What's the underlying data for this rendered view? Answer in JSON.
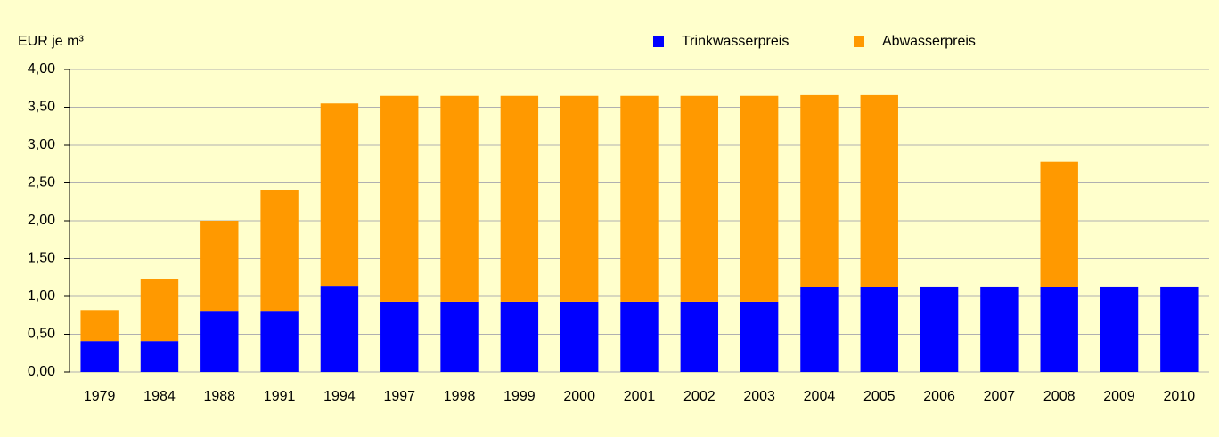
{
  "chart_data": {
    "type": "stacked_bar",
    "y_label": "EUR je m³",
    "categories": [
      "1979",
      "1984",
      "1988",
      "1991",
      "1994",
      "1997",
      "1998",
      "1999",
      "2000",
      "2001",
      "2002",
      "2003",
      "2004",
      "2005",
      "2006",
      "2007",
      "2008",
      "2009",
      "2010"
    ],
    "series": [
      {
        "name": "Trinkwasserpreis",
        "color": "#0000ff",
        "values": [
          0.41,
          0.41,
          0.81,
          0.81,
          1.14,
          0.93,
          0.93,
          0.93,
          0.93,
          0.93,
          0.93,
          0.93,
          1.12,
          1.12,
          1.13,
          1.13,
          1.12,
          1.13,
          1.13
        ]
      },
      {
        "name": "Abwasserpreis",
        "color": "#ff9900",
        "values": [
          0.41,
          0.82,
          1.19,
          1.59,
          2.41,
          2.72,
          2.72,
          2.72,
          2.72,
          2.72,
          2.72,
          2.72,
          2.54,
          2.54,
          0,
          0,
          1.66,
          0,
          0
        ]
      }
    ],
    "ylim": [
      0,
      4
    ],
    "yticks": [
      {
        "value": 0,
        "label": "0,00"
      },
      {
        "value": 0.5,
        "label": "0,50"
      },
      {
        "value": 1,
        "label": "1,00"
      },
      {
        "value": 1.5,
        "label": "1,50"
      },
      {
        "value": 2,
        "label": "2,00"
      },
      {
        "value": 2.5,
        "label": "2,50"
      },
      {
        "value": 3,
        "label": "3,00"
      },
      {
        "value": 3.5,
        "label": "3,50"
      },
      {
        "value": 4,
        "label": "4,00"
      }
    ],
    "grid": true
  }
}
